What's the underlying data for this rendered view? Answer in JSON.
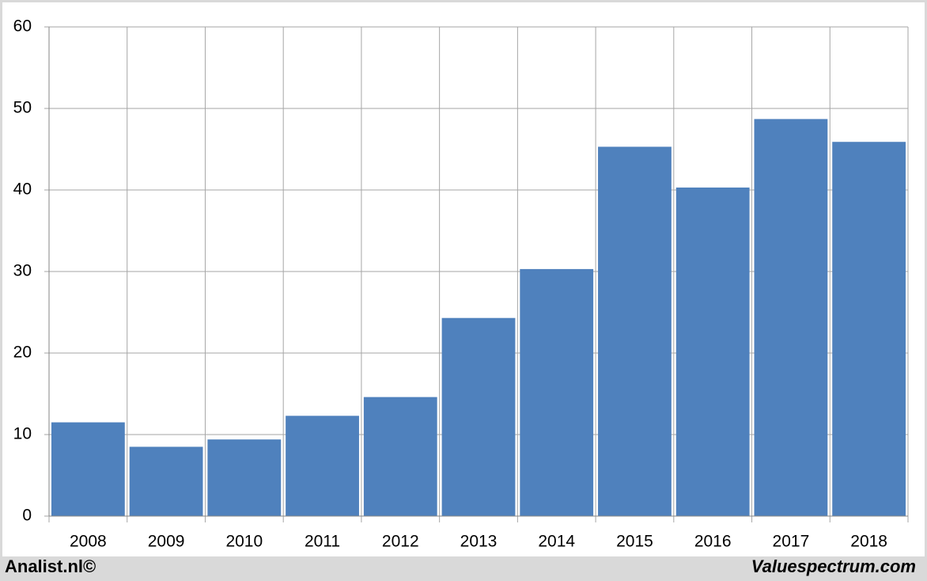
{
  "chart_data": {
    "type": "bar",
    "categories": [
      "2008",
      "2009",
      "2010",
      "2011",
      "2012",
      "2013",
      "2014",
      "2015",
      "2016",
      "2017",
      "2018"
    ],
    "values": [
      11.5,
      8.5,
      9.4,
      12.3,
      14.6,
      24.3,
      30.3,
      45.3,
      40.3,
      48.7,
      45.9
    ],
    "color": "#4f81bd",
    "ylim": [
      0,
      60
    ],
    "yticks": [
      0,
      10,
      20,
      30,
      40,
      50,
      60
    ],
    "grid": true
  },
  "footer": {
    "left": "Analist.nl©",
    "right": "Valuespectrum.com"
  }
}
